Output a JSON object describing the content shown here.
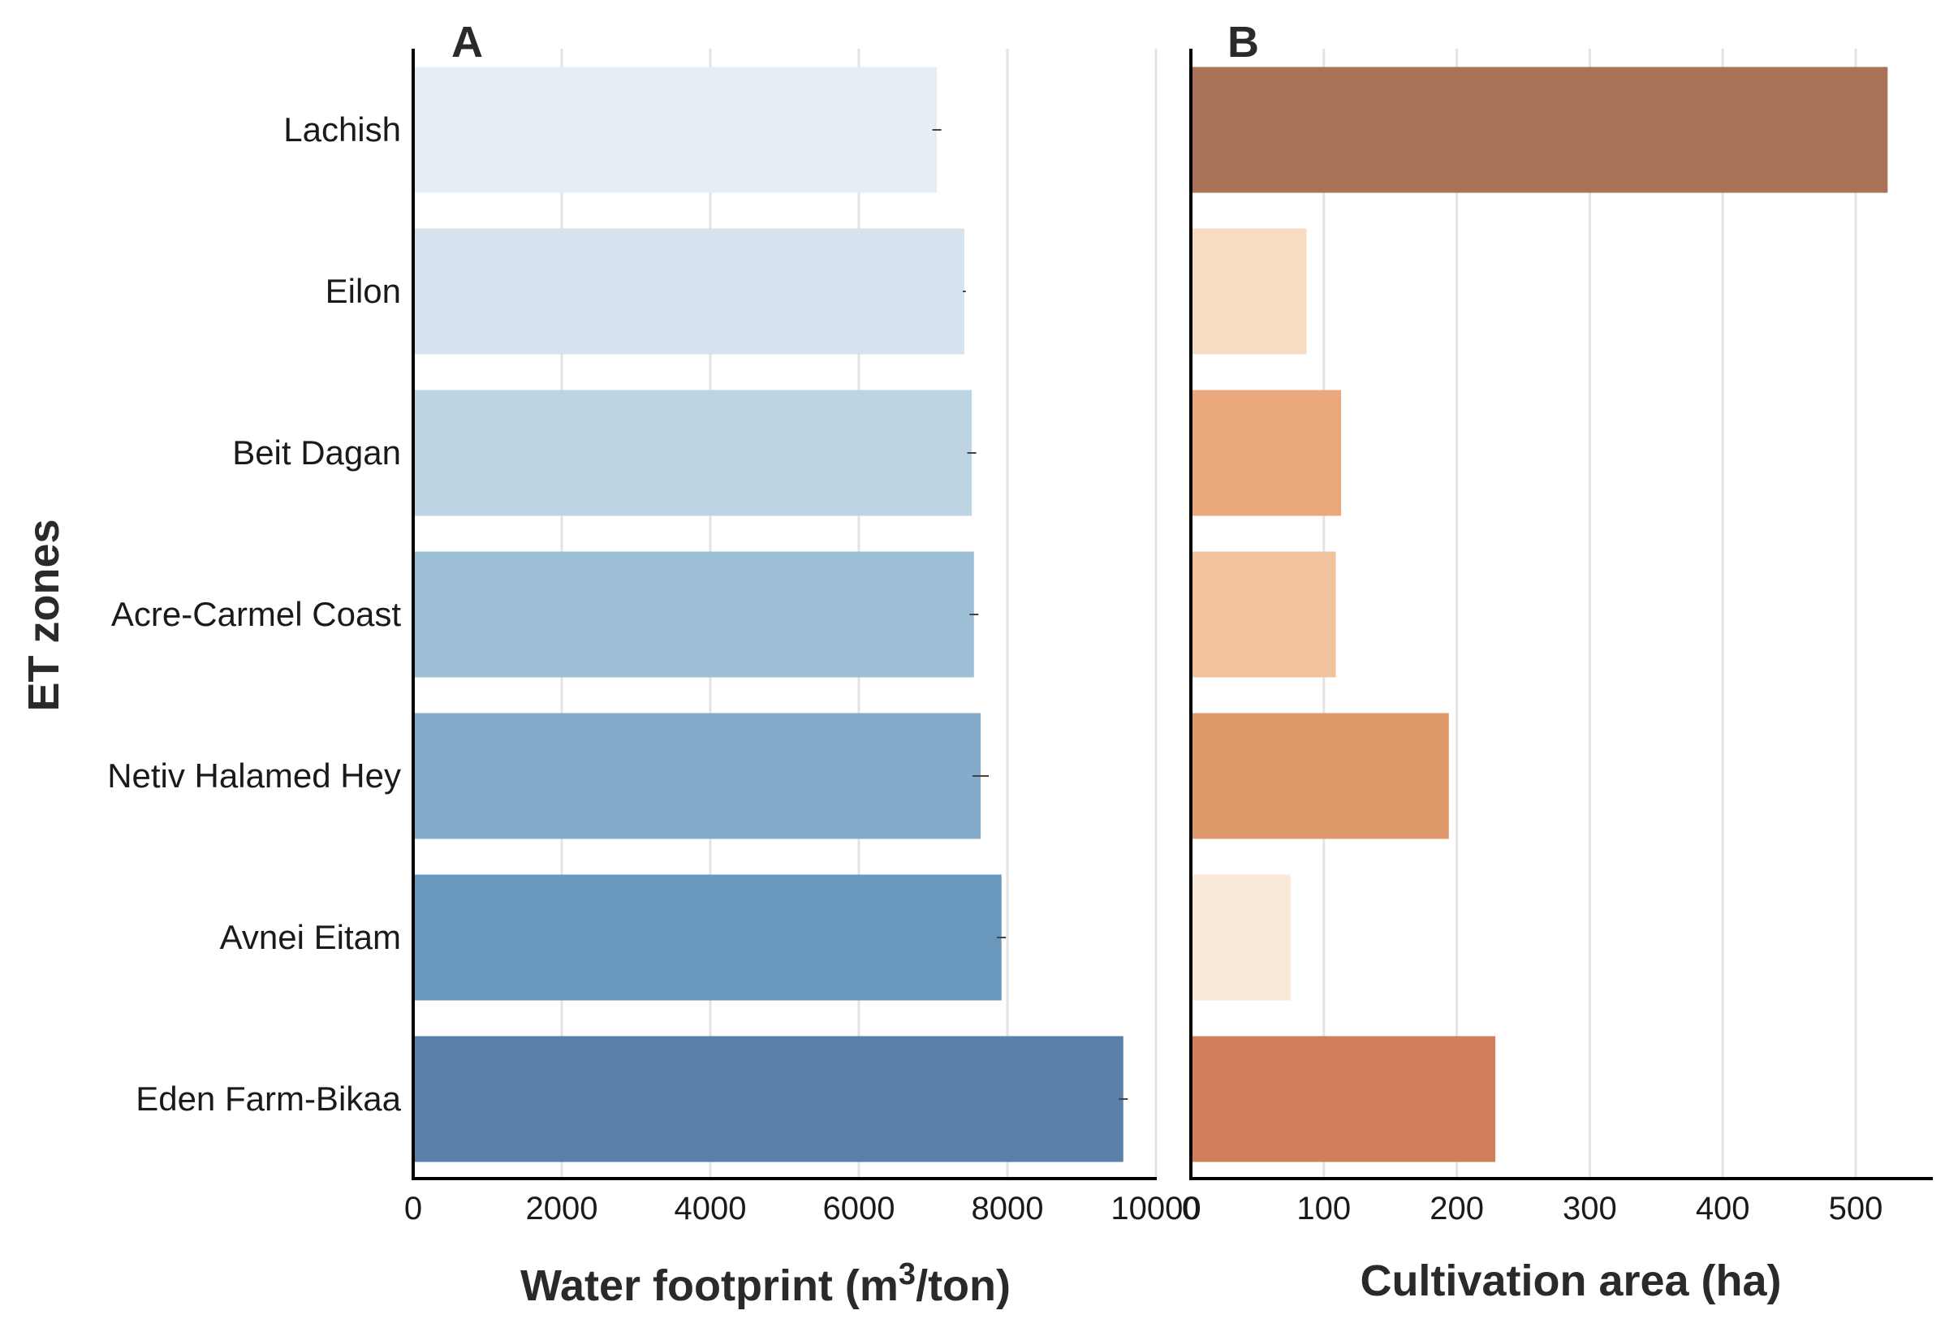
{
  "chart_data": [
    {
      "panel": "A",
      "type": "bar",
      "orientation": "horizontal",
      "categories": [
        "Lachish",
        "Eilon",
        "Beit Dagan",
        "Acre-Carmel Coast",
        "Netiv Halamed Hey",
        "Avnei Eitam",
        "Eden Farm-Bikaa"
      ],
      "values": [
        7050,
        7420,
        7520,
        7550,
        7640,
        7920,
        9560
      ],
      "errors": [
        60,
        20,
        60,
        60,
        110,
        60,
        60
      ],
      "colors": [
        "#e6edf5",
        "#d6e2ed",
        "#bdd4e3",
        "#9ec0d6",
        "#84abca",
        "#6a98bd",
        "#5a7fa8"
      ],
      "xlabel": "Water footprint (m",
      "xlabel_sup": "3",
      "xlabel_suffix": "/ton)",
      "ylabel": "ET zones",
      "xlim": [
        0,
        10200
      ],
      "xticks": [
        0,
        2000,
        4000,
        6000,
        8000,
        10000
      ],
      "xtick_labels": [
        "0",
        "2000",
        "4000",
        "6000",
        "8000",
        "10000"
      ],
      "grid": true
    },
    {
      "panel": "B",
      "type": "bar",
      "orientation": "horizontal",
      "categories": [
        "Lachish",
        "Eilon",
        "Beit Dagan",
        "Acre-Carmel Coast",
        "Netiv Halamed Hey",
        "Avnei Eitam",
        "Eden Farm-Bikaa"
      ],
      "values": [
        524,
        87,
        113,
        109,
        194,
        75,
        229
      ],
      "colors": [
        "#aa7358",
        "#f6dcc2",
        "#eaa97d",
        "#f0c39d",
        "#e0996a",
        "#f9e9d9",
        "#d07f5a"
      ],
      "xlabel": "Cultivation area (ha)",
      "xlim": [
        0,
        550
      ],
      "xticks": [
        0,
        100,
        200,
        300,
        400,
        500
      ],
      "xtick_labels": [
        "0",
        "100",
        "200",
        "300",
        "400",
        "500"
      ],
      "grid": true
    }
  ]
}
